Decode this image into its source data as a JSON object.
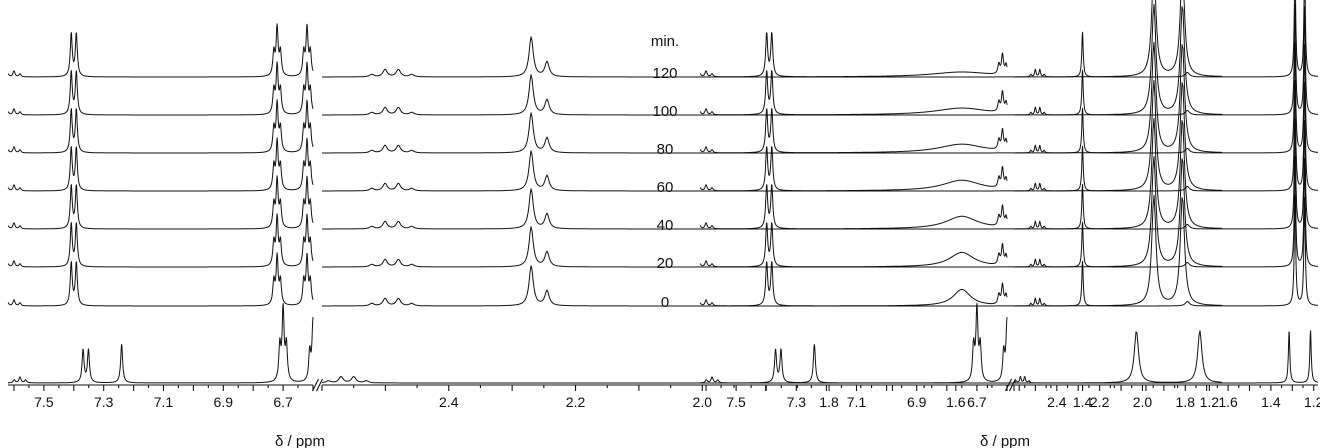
{
  "chart_data": [
    {
      "type": "line",
      "panel": "left",
      "xlabel": "δ / ppm",
      "x_reversed": true,
      "axis_break": [
        6.6,
        2.6
      ],
      "x_segments": [
        [
          7.62,
          6.6
        ],
        [
          2.6,
          1.18
        ]
      ],
      "tick_labels_seg1": [
        "7.5",
        "7.3",
        "7.1",
        "6.9",
        "6.7"
      ],
      "tick_labels_seg2": [
        "2.4",
        "2.2",
        "2.0",
        "1.8",
        "1.6",
        "1.4",
        "1.2"
      ],
      "time_series_minutes": [
        120,
        100,
        80,
        60,
        40,
        20,
        0
      ],
      "stacked_spectra": {
        "peaks": [
          {
            "ppm": 7.6,
            "height": 0.12,
            "width": 0.004,
            "mult": 3,
            "J": 0.02
          },
          {
            "ppm": 7.4,
            "height": 0.85,
            "width": 0.004,
            "mult": 2,
            "J": 0.017
          },
          {
            "ppm": 6.72,
            "height": 0.95,
            "width": 0.004,
            "mult": 3,
            "J": 0.011
          },
          {
            "ppm": 6.62,
            "height": 0.95,
            "width": 0.004,
            "mult": 3,
            "J": 0.011
          },
          {
            "ppm": 2.49,
            "height": 0.15,
            "width": 0.004,
            "mult": 4,
            "J": 0.021
          },
          {
            "ppm": 2.27,
            "height": 0.8,
            "width": 0.004,
            "mult": 1,
            "J": 0
          },
          {
            "ppm": 2.245,
            "height": 0.3,
            "width": 0.004,
            "mult": 1,
            "J": 0
          },
          {
            "ppm": 1.265,
            "height": 2.2,
            "width": 0.004,
            "mult": 2,
            "J": 0.045
          }
        ]
      },
      "reference_spectrum": {
        "peaks": [
          {
            "ppm": 7.58,
            "height": 0.14,
            "width": 0.004,
            "mult": 3,
            "J": 0.019
          },
          {
            "ppm": 7.36,
            "height": 0.78,
            "width": 0.004,
            "mult": 2,
            "J": 0.018
          },
          {
            "ppm": 7.24,
            "height": 0.92,
            "width": 0.004,
            "mult": 1,
            "J": 0
          },
          {
            "ppm": 6.7,
            "height": 1.7,
            "width": 0.004,
            "mult": 3,
            "J": 0.011
          },
          {
            "ppm": 6.6,
            "height": 1.4,
            "width": 0.004,
            "mult": 3,
            "J": 0.011
          },
          {
            "ppm": 2.56,
            "height": 0.15,
            "width": 0.004,
            "mult": 4,
            "J": 0.02
          },
          {
            "ppm": 1.265,
            "height": 1.25,
            "width": 0.004,
            "mult": 2,
            "J": 0.1
          }
        ]
      }
    },
    {
      "type": "line",
      "panel": "right",
      "xlabel": "δ / ppm",
      "x_reversed": true,
      "axis_break": [
        6.6,
        2.6
      ],
      "x_segments": [
        [
          7.62,
          6.6
        ],
        [
          2.6,
          1.18
        ]
      ],
      "tick_labels_seg1": [
        "7.5",
        "7.3",
        "7.1",
        "6.9",
        "6.7"
      ],
      "tick_labels_seg2": [
        "2.4",
        "2.2",
        "2.0",
        "1.8",
        "1.6",
        "1.4",
        "1.2"
      ],
      "time_labels_header": "min.",
      "time_series_minutes": [
        120,
        100,
        80,
        60,
        40,
        20,
        0
      ],
      "broad_peak": {
        "ppm": 6.75,
        "width_120min": 0.12,
        "width_0min": 0.035,
        "height_120min": 0.1,
        "height_0min": 0.33
      },
      "stacked_spectra": {
        "peaks": [
          {
            "ppm": 7.6,
            "height": 0.12,
            "width": 0.004,
            "mult": 3,
            "J": 0.02
          },
          {
            "ppm": 7.39,
            "height": 0.85,
            "width": 0.004,
            "mult": 2,
            "J": 0.017
          },
          {
            "ppm": 6.615,
            "height": 0.4,
            "width": 0.004,
            "mult": 3,
            "J": 0.012
          },
          {
            "ppm": 2.49,
            "height": 0.15,
            "width": 0.004,
            "mult": 4,
            "J": 0.021
          },
          {
            "ppm": 2.28,
            "height": 0.9,
            "width": 0.004,
            "mult": 1,
            "J": 0
          },
          {
            "ppm": 1.79,
            "height": 0.09,
            "width": 0.012,
            "mult": 1,
            "J": 0
          },
          {
            "ppm": 1.265,
            "height": 2.2,
            "width": 0.004,
            "mult": 2,
            "J": 0.045
          }
        ]
      },
      "reference_spectrum": {
        "peaks": [
          {
            "ppm": 7.58,
            "height": 0.14,
            "width": 0.004,
            "mult": 3,
            "J": 0.019
          },
          {
            "ppm": 7.36,
            "height": 0.78,
            "width": 0.004,
            "mult": 2,
            "J": 0.018
          },
          {
            "ppm": 7.24,
            "height": 0.92,
            "width": 0.004,
            "mult": 1,
            "J": 0
          },
          {
            "ppm": 6.7,
            "height": 1.7,
            "width": 0.004,
            "mult": 3,
            "J": 0.011
          },
          {
            "ppm": 6.6,
            "height": 1.4,
            "width": 0.004,
            "mult": 3,
            "J": 0.011
          },
          {
            "ppm": 2.56,
            "height": 0.15,
            "width": 0.004,
            "mult": 4,
            "J": 0.02
          },
          {
            "ppm": 1.265,
            "height": 1.25,
            "width": 0.004,
            "mult": 2,
            "J": 0.1
          }
        ]
      }
    }
  ]
}
